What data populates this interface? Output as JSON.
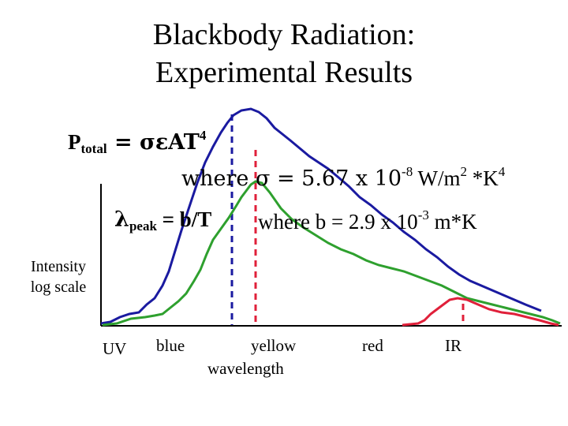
{
  "title": {
    "line1": "Blackbody Radiation:",
    "line2": "Experimental Results"
  },
  "equations": {
    "ptotal": {
      "lhs": "P",
      "lhs_sub": "total",
      "rhs": " = σεAT",
      "rhs_sup": "4"
    },
    "sigma": {
      "prefix": "where σ = 5.67 x 10",
      "exp1": "-8",
      "mid": " W/m",
      "exp2": "2",
      "mid2": " *K",
      "exp3": "4"
    },
    "lambda": {
      "symbol": "λ",
      "sub": "peak",
      "rhs": " = b/T"
    },
    "b": {
      "prefix": "where b = 2.9 x 10",
      "exp": "-3",
      "suffix": " m*K"
    }
  },
  "axis": {
    "ylabel_line1": "Intensity",
    "ylabel_line2": "log scale",
    "xlabel": "wavelength",
    "regions": [
      "UV",
      "blue",
      "yellow",
      "red",
      "IR"
    ]
  },
  "colors": {
    "blue_curve": "#1a1aa0",
    "green_curve": "#2ea02e",
    "red_curve": "#e0203a",
    "axis": "#000000"
  },
  "chart_data": {
    "type": "line",
    "x_scale": "log",
    "y_scale": "log",
    "series": [
      {
        "peak_label": "blue"
      },
      {
        "peak_label": "yellow"
      },
      {
        "peak_label": "IR"
      }
    ]
  }
}
